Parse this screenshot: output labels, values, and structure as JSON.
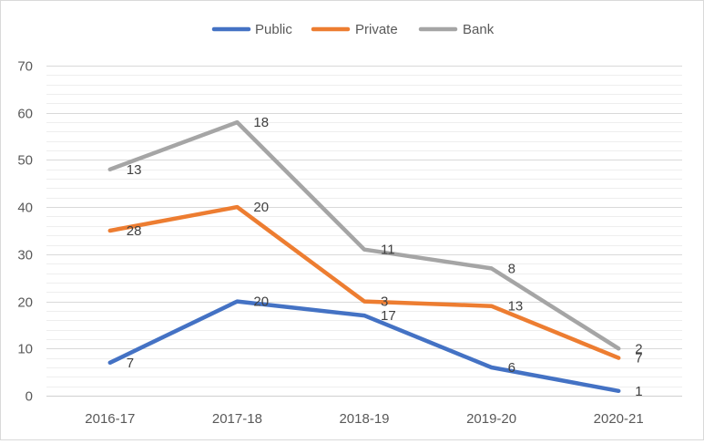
{
  "chart_data": {
    "type": "line",
    "title": "",
    "xlabel": "",
    "ylabel": "",
    "categories": [
      "2016-17",
      "2017-18",
      "2018-19",
      "2019-20",
      "2020-21"
    ],
    "ylim": [
      0,
      70
    ],
    "yticks": [
      0,
      10,
      20,
      30,
      40,
      50,
      60,
      70
    ],
    "grid": true,
    "minor_grid": true,
    "legend_position": "top",
    "series": [
      {
        "name": "Public",
        "color": "#4472c4",
        "values": [
          7,
          20,
          17,
          6,
          1
        ],
        "labels": [
          "7",
          "20",
          "17",
          "6",
          "1"
        ]
      },
      {
        "name": "Private",
        "color": "#ed7d31",
        "values": [
          35,
          40,
          20,
          19,
          8
        ],
        "labels": [
          "28",
          "20",
          "3",
          "13",
          "7"
        ]
      },
      {
        "name": "Bank",
        "color": "#a5a5a5",
        "values": [
          48,
          58,
          31,
          27,
          10
        ],
        "labels": [
          "13",
          "18",
          "11",
          "8",
          "2"
        ]
      }
    ]
  }
}
